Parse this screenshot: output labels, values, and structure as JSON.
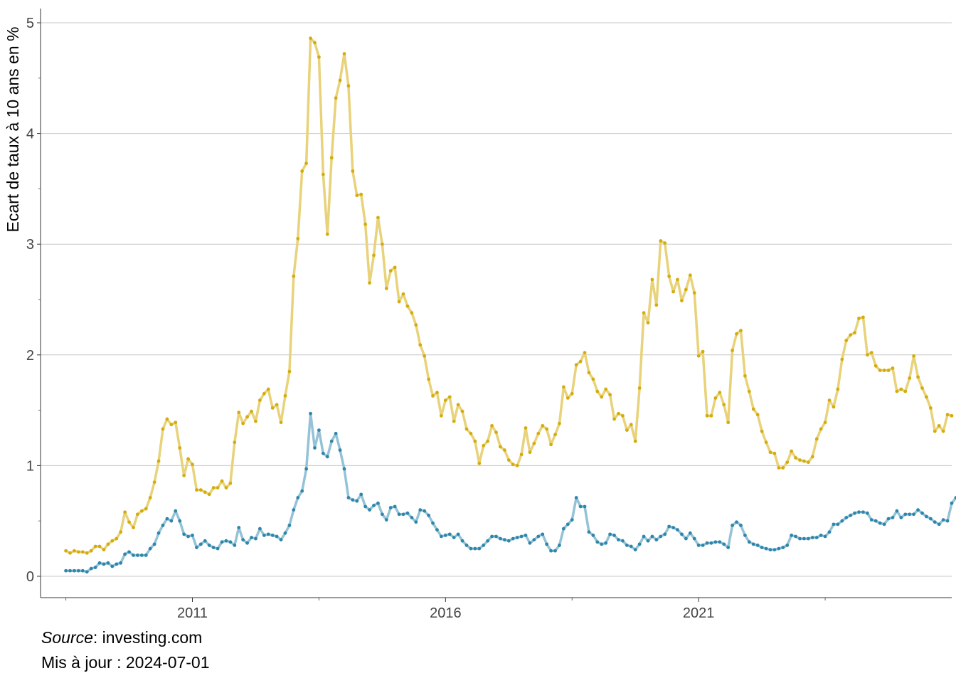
{
  "chart_data": {
    "type": "line",
    "title": "",
    "xlabel": "",
    "ylabel": "Ecart de taux à 10 ans en %",
    "ylim": [
      0,
      5
    ],
    "yticks": [
      0,
      1,
      2,
      3,
      4,
      5
    ],
    "xlim": [
      2008.0,
      2026.0
    ],
    "xtick_labels": [
      "2011",
      "2016",
      "2021"
    ],
    "xtick_values": [
      2011,
      2016,
      2021
    ],
    "x_start": 2008.0,
    "x_step_months": 1,
    "grid": "horizontal",
    "legend": "none",
    "series": [
      {
        "color": "#D4AC0D",
        "line_color": "#E8D27A",
        "values": [
          0.23,
          0.21,
          0.23,
          0.22,
          0.22,
          0.21,
          0.23,
          0.27,
          0.27,
          0.24,
          0.29,
          0.32,
          0.34,
          0.4,
          0.58,
          0.49,
          0.44,
          0.56,
          0.59,
          0.61,
          0.71,
          0.85,
          1.04,
          1.33,
          1.42,
          1.37,
          1.39,
          1.16,
          0.91,
          1.06,
          1.01,
          0.78,
          0.78,
          0.76,
          0.74,
          0.8,
          0.8,
          0.86,
          0.8,
          0.84,
          1.21,
          1.48,
          1.38,
          1.44,
          1.49,
          1.4,
          1.59,
          1.65,
          1.69,
          1.52,
          1.55,
          1.39,
          1.63,
          1.85,
          2.71,
          3.05,
          3.66,
          3.73,
          4.86,
          4.82,
          4.69,
          3.63,
          3.09,
          3.78,
          4.32,
          4.48,
          4.72,
          4.43,
          3.66,
          3.44,
          3.45,
          3.18,
          2.65,
          2.9,
          3.24,
          3.0,
          2.6,
          2.76,
          2.79,
          2.48,
          2.55,
          2.44,
          2.38,
          2.27,
          2.09,
          1.99,
          1.78,
          1.63,
          1.66,
          1.45,
          1.59,
          1.62,
          1.4,
          1.55,
          1.49,
          1.33,
          1.29,
          1.22,
          1.02,
          1.18,
          1.22,
          1.36,
          1.3,
          1.17,
          1.14,
          1.05,
          1.01,
          1.0,
          1.1,
          1.34,
          1.12,
          1.2,
          1.29,
          1.36,
          1.33,
          1.19,
          1.28,
          1.38,
          1.71,
          1.61,
          1.65,
          1.91,
          1.94,
          2.02,
          1.84,
          1.78,
          1.67,
          1.62,
          1.69,
          1.64,
          1.42,
          1.47,
          1.45,
          1.32,
          1.37,
          1.22,
          1.7,
          2.38,
          2.29,
          2.68,
          2.45,
          3.03,
          3.01,
          2.71,
          2.57,
          2.68,
          2.49,
          2.59,
          2.72,
          2.56,
          1.99,
          2.03,
          1.45,
          1.45,
          1.61,
          1.66,
          1.55,
          1.39,
          2.04,
          2.19,
          2.22,
          1.81,
          1.67,
          1.51,
          1.46,
          1.31,
          1.21,
          1.12,
          1.11,
          0.98,
          0.98,
          1.03,
          1.13,
          1.07,
          1.05,
          1.04,
          1.03,
          1.08,
          1.24,
          1.33,
          1.39,
          1.59,
          1.53,
          1.69,
          1.96,
          2.13,
          2.18,
          2.2,
          2.33,
          2.34,
          2.0,
          2.02,
          1.9,
          1.86,
          1.86,
          1.86,
          1.88,
          1.67,
          1.69,
          1.67,
          1.79,
          1.99,
          1.8,
          1.7,
          1.62,
          1.52,
          1.31,
          1.36,
          1.31,
          1.46,
          1.45
        ]
      },
      {
        "color": "#2E86AB",
        "line_color": "#94C2D6",
        "values": [
          0.05,
          0.05,
          0.05,
          0.05,
          0.05,
          0.04,
          0.07,
          0.08,
          0.12,
          0.11,
          0.12,
          0.09,
          0.11,
          0.12,
          0.2,
          0.22,
          0.19,
          0.19,
          0.19,
          0.19,
          0.25,
          0.29,
          0.39,
          0.46,
          0.52,
          0.5,
          0.59,
          0.5,
          0.38,
          0.36,
          0.37,
          0.26,
          0.29,
          0.32,
          0.28,
          0.26,
          0.25,
          0.31,
          0.32,
          0.31,
          0.28,
          0.44,
          0.33,
          0.3,
          0.35,
          0.34,
          0.43,
          0.37,
          0.38,
          0.37,
          0.36,
          0.33,
          0.39,
          0.46,
          0.6,
          0.71,
          0.77,
          0.97,
          1.47,
          1.16,
          1.32,
          1.11,
          1.08,
          1.22,
          1.29,
          1.14,
          0.97,
          0.71,
          0.69,
          0.68,
          0.74,
          0.63,
          0.6,
          0.64,
          0.66,
          0.56,
          0.51,
          0.62,
          0.63,
          0.56,
          0.56,
          0.57,
          0.53,
          0.49,
          0.6,
          0.59,
          0.55,
          0.48,
          0.42,
          0.36,
          0.37,
          0.38,
          0.35,
          0.38,
          0.32,
          0.28,
          0.25,
          0.25,
          0.25,
          0.28,
          0.32,
          0.36,
          0.36,
          0.34,
          0.33,
          0.32,
          0.34,
          0.35,
          0.36,
          0.37,
          0.3,
          0.33,
          0.36,
          0.38,
          0.29,
          0.23,
          0.23,
          0.28,
          0.43,
          0.47,
          0.51,
          0.71,
          0.63,
          0.63,
          0.4,
          0.37,
          0.31,
          0.29,
          0.3,
          0.38,
          0.37,
          0.33,
          0.32,
          0.28,
          0.27,
          0.24,
          0.29,
          0.36,
          0.32,
          0.36,
          0.33,
          0.36,
          0.38,
          0.45,
          0.44,
          0.42,
          0.38,
          0.34,
          0.39,
          0.34,
          0.28,
          0.28,
          0.3,
          0.3,
          0.31,
          0.31,
          0.29,
          0.26,
          0.46,
          0.49,
          0.46,
          0.37,
          0.31,
          0.29,
          0.28,
          0.26,
          0.25,
          0.24,
          0.24,
          0.25,
          0.26,
          0.28,
          0.37,
          0.36,
          0.34,
          0.34,
          0.34,
          0.35,
          0.35,
          0.37,
          0.36,
          0.4,
          0.47,
          0.47,
          0.5,
          0.53,
          0.55,
          0.57,
          0.58,
          0.58,
          0.57,
          0.51,
          0.5,
          0.48,
          0.47,
          0.52,
          0.53,
          0.59,
          0.53,
          0.56,
          0.56,
          0.56,
          0.6,
          0.57,
          0.54,
          0.52,
          0.49,
          0.47,
          0.51,
          0.5,
          0.66,
          0.71
        ]
      }
    ]
  },
  "caption": {
    "source_label": "Source",
    "source_value": ": investing.com",
    "updated": "Mis à jour : 2024-07-01"
  }
}
